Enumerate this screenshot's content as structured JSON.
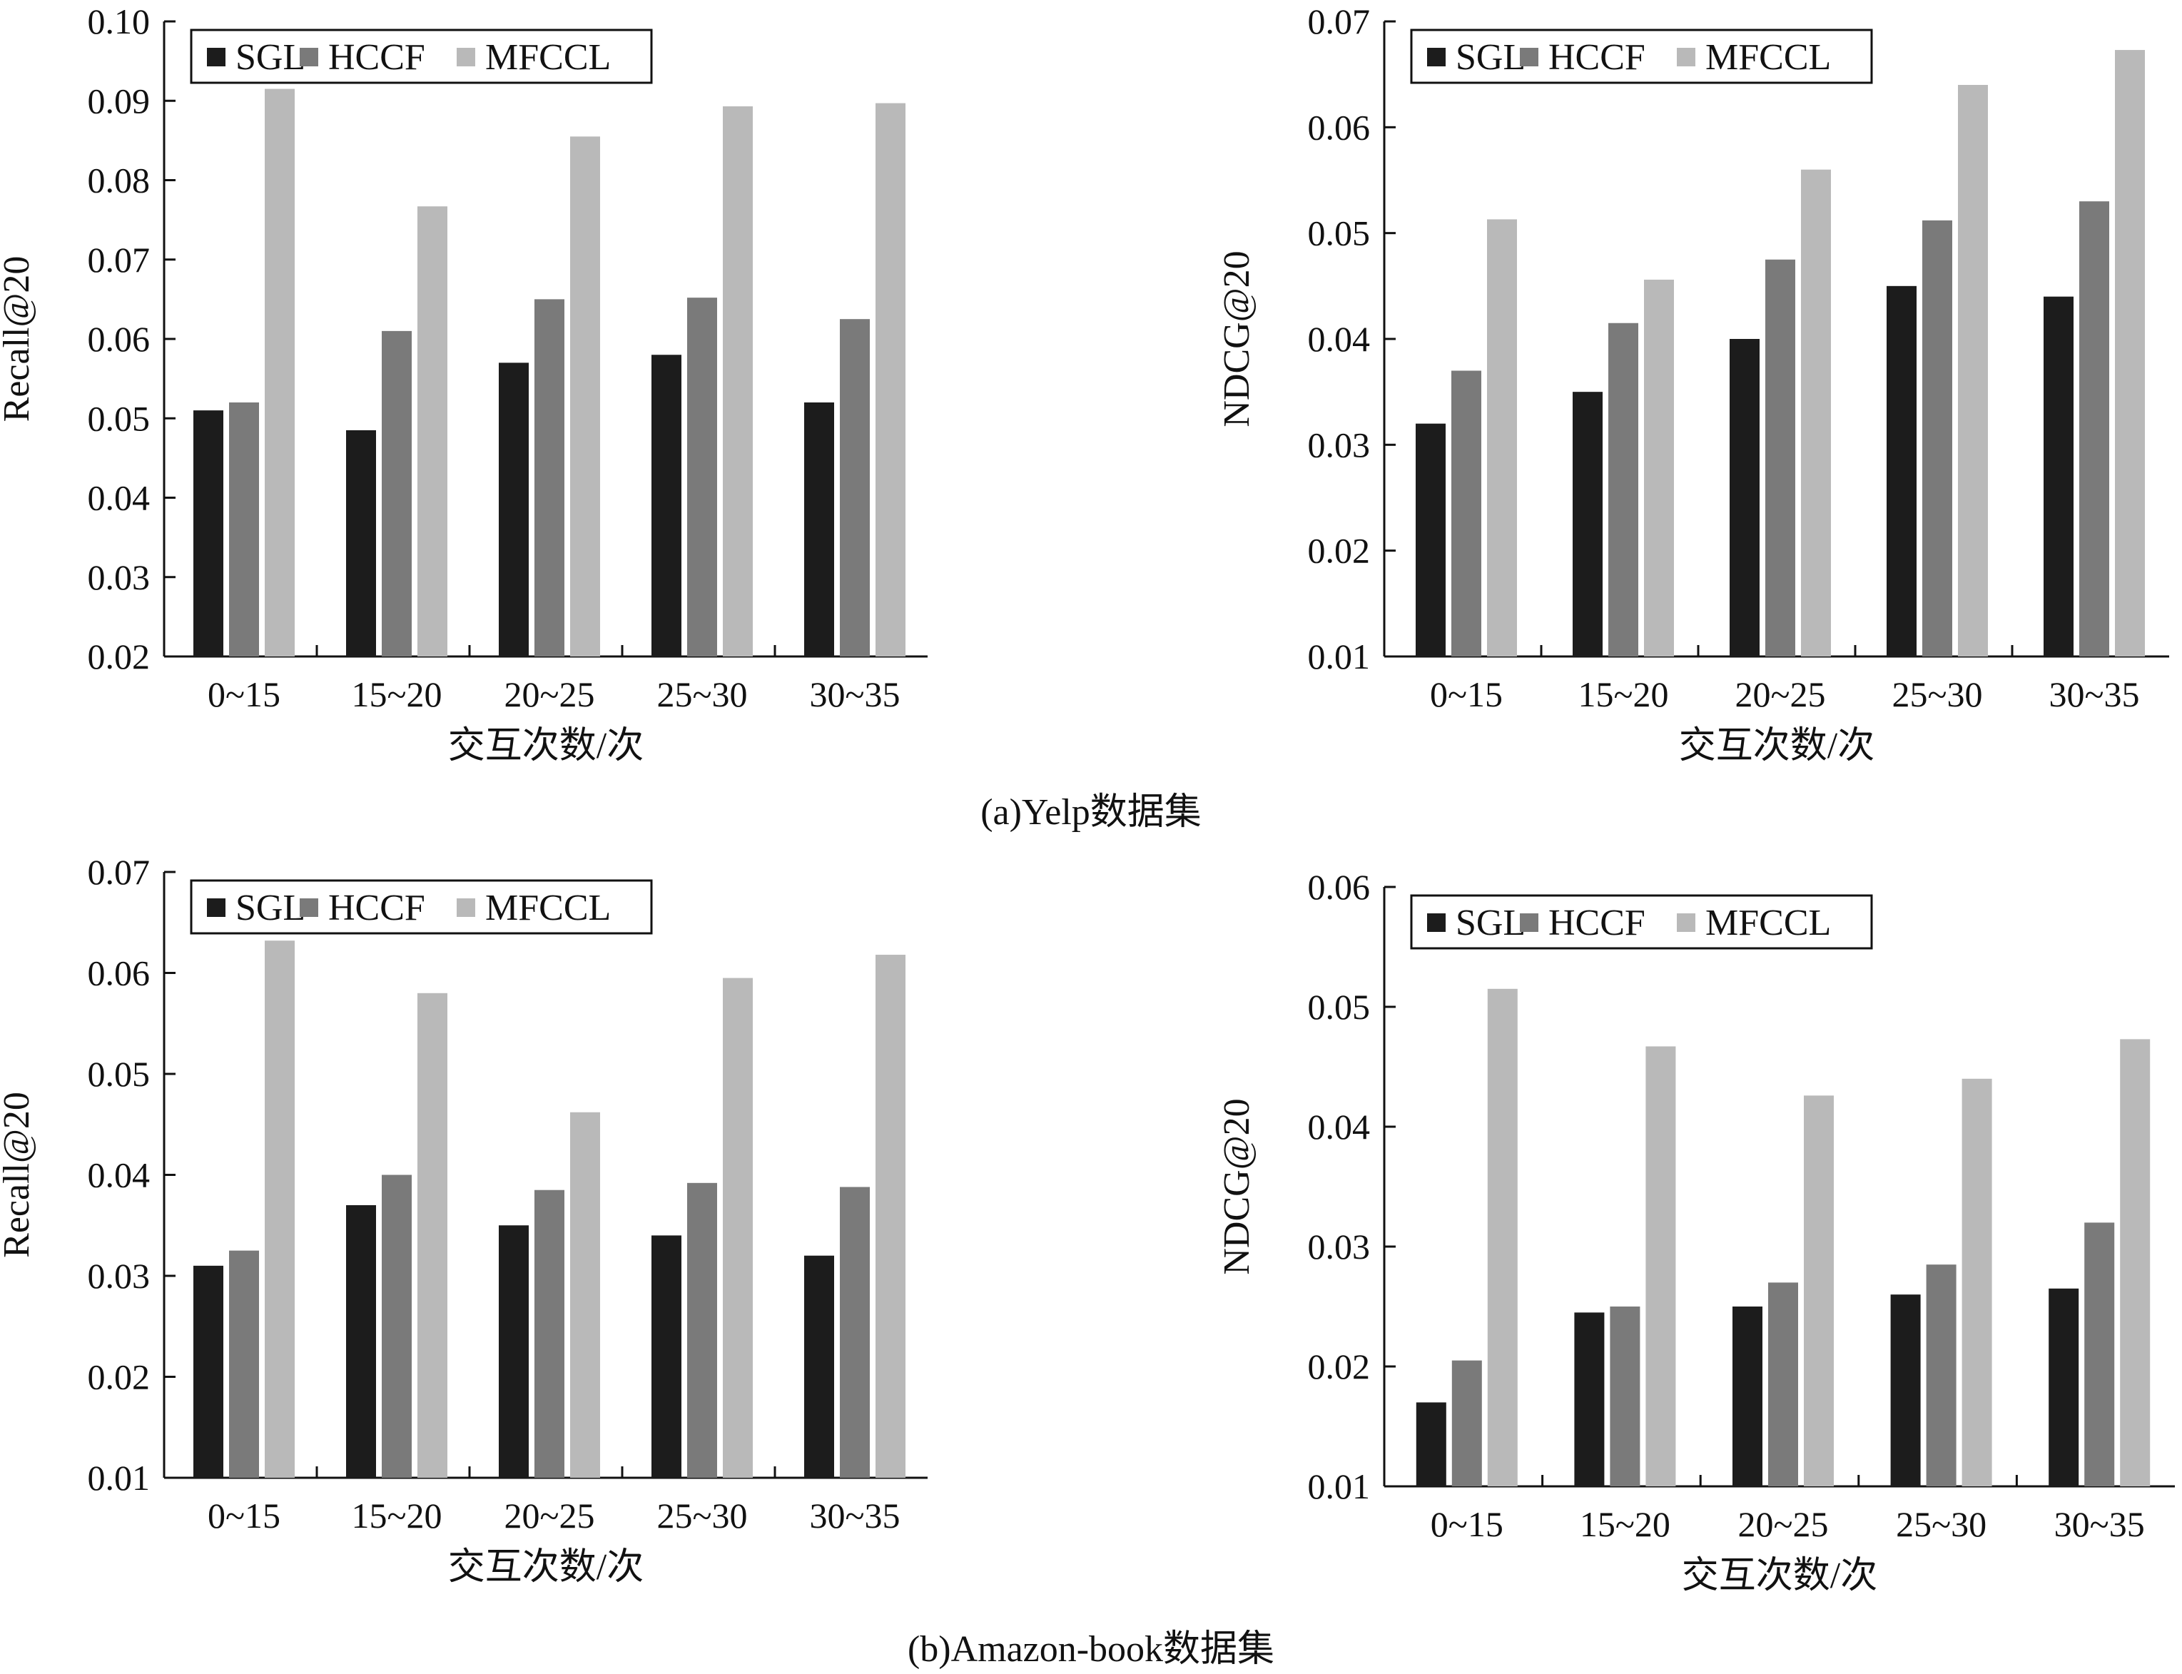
{
  "figure": {
    "captions": [
      "(a)Yelp数据集",
      "(b)Amazon-book数据集"
    ]
  },
  "colors": {
    "SGL": "#1c1c1c",
    "HCCF": "#7a7a7a",
    "MFCCL": "#b9b9b9",
    "axis": "#111111",
    "background": "#ffffff"
  },
  "chart_data": [
    {
      "type": "bar",
      "title": "",
      "categories": [
        "0~15",
        "15~20",
        "20~25",
        "25~30",
        "30~35"
      ],
      "series": [
        {
          "name": "SGL",
          "values": [
            0.051,
            0.0485,
            0.057,
            0.058,
            0.052
          ]
        },
        {
          "name": "HCCF",
          "values": [
            0.052,
            0.061,
            0.065,
            0.0652,
            0.0625
          ]
        },
        {
          "name": "MFCCL",
          "values": [
            0.0915,
            0.0767,
            0.0855,
            0.0893,
            0.0897
          ]
        }
      ],
      "xlabel": "交互次数/次",
      "ylabel": "Recall@20",
      "ylim": [
        0.02,
        0.1
      ],
      "yticks": [
        "0.02",
        "0.03",
        "0.04",
        "0.05",
        "0.06",
        "0.07",
        "0.08",
        "0.09",
        "0.10"
      ],
      "legend": "top-left",
      "grid": false
    },
    {
      "type": "bar",
      "title": "",
      "categories": [
        "0~15",
        "15~20",
        "20~25",
        "25~30",
        "30~35"
      ],
      "series": [
        {
          "name": "SGL",
          "values": [
            0.032,
            0.035,
            0.04,
            0.045,
            0.044
          ]
        },
        {
          "name": "HCCF",
          "values": [
            0.037,
            0.0415,
            0.0475,
            0.0512,
            0.053
          ]
        },
        {
          "name": "MFCCL",
          "values": [
            0.0513,
            0.0456,
            0.056,
            0.064,
            0.0673
          ]
        }
      ],
      "xlabel": "交互次数/次",
      "ylabel": "NDCG@20",
      "ylim": [
        0.01,
        0.07
      ],
      "yticks": [
        "0.01",
        "0.02",
        "0.03",
        "0.04",
        "0.05",
        "0.06",
        "0.07"
      ],
      "legend": "top-left",
      "grid": false
    },
    {
      "type": "bar",
      "title": "",
      "categories": [
        "0~15",
        "15~20",
        "20~25",
        "25~30",
        "30~35"
      ],
      "series": [
        {
          "name": "SGL",
          "values": [
            0.031,
            0.037,
            0.035,
            0.034,
            0.032
          ]
        },
        {
          "name": "HCCF",
          "values": [
            0.0325,
            0.04,
            0.0385,
            0.0392,
            0.0388
          ]
        },
        {
          "name": "MFCCL",
          "values": [
            0.0632,
            0.058,
            0.0462,
            0.0595,
            0.0618
          ]
        }
      ],
      "xlabel": "交互次数/次",
      "ylabel": "Recall@20",
      "ylim": [
        0.01,
        0.07
      ],
      "yticks": [
        "0.01",
        "0.02",
        "0.03",
        "0.04",
        "0.05",
        "0.06",
        "0.07"
      ],
      "legend": "top-left",
      "grid": false
    },
    {
      "type": "bar",
      "title": "",
      "categories": [
        "0~15",
        "15~20",
        "20~25",
        "25~30",
        "30~35"
      ],
      "series": [
        {
          "name": "SGL",
          "values": [
            0.017,
            0.0245,
            0.025,
            0.026,
            0.0265
          ]
        },
        {
          "name": "HCCF",
          "values": [
            0.0205,
            0.025,
            0.027,
            0.0285,
            0.032
          ]
        },
        {
          "name": "MFCCL",
          "values": [
            0.0515,
            0.0467,
            0.0426,
            0.044,
            0.0473
          ]
        }
      ],
      "xlabel": "交互次数/次",
      "ylabel": "NDCG@20",
      "ylim": [
        0.01,
        0.06
      ],
      "yticks": [
        "0.01",
        "0.02",
        "0.03",
        "0.04",
        "0.05",
        "0.06"
      ],
      "legend": "top-left",
      "grid": false
    }
  ]
}
